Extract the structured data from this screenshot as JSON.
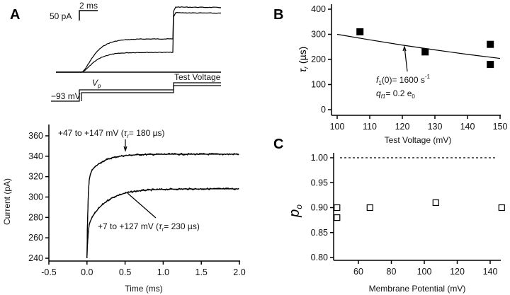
{
  "panels": {
    "a": "A",
    "b": "B",
    "c": "C"
  },
  "schematic": {
    "scale_time": "2 ms",
    "scale_current": "50 pA",
    "holding": "−93 mV",
    "prepulse_v": "V",
    "prepulse_sub": "p",
    "test_voltage": "Test Voltage"
  },
  "chart_data": [
    {
      "id": "A-bottom",
      "type": "line",
      "xlabel": "Time (ms)",
      "ylabel": "Current (pA)",
      "xlim": [
        -0.5,
        2.0
      ],
      "ylim": [
        240,
        370
      ],
      "xticks": [
        "-0.5",
        "0.0",
        "0.5",
        "1.0",
        "1.5",
        "2.0"
      ],
      "yticks": [
        "240",
        "260",
        "280",
        "300",
        "320",
        "340",
        "360"
      ],
      "series": [
        {
          "name": "+47 to +147 mV",
          "plateau": 342,
          "start": 240,
          "tau_us": 180,
          "label_pre": "+47 to +147 mV (",
          "label_tau": "τ",
          "label_sub": "r",
          "label_post": "= 180 µs)"
        },
        {
          "name": "+7 to +127 mV",
          "plateau": 308,
          "start": 240,
          "tau_us": 230,
          "label_pre": "+7 to +127 mV (",
          "label_tau": "τ",
          "label_sub": "r",
          "label_post": "= 230 µs)"
        }
      ]
    },
    {
      "id": "B",
      "type": "scatter",
      "xlabel": "Test Voltage (mV)",
      "ylabel_sym": "τ",
      "ylabel_sub": "r",
      "ylabel_unit": " (µs)",
      "xlim": [
        98,
        150
      ],
      "ylim": [
        -10,
        410
      ],
      "xticks": [
        "100",
        "110",
        "120",
        "130",
        "140",
        "150"
      ],
      "yticks": [
        "0",
        "100",
        "200",
        "300",
        "400"
      ],
      "points": [
        [
          107,
          310
        ],
        [
          127,
          230
        ],
        [
          147,
          260
        ],
        [
          147,
          180
        ]
      ],
      "fit": {
        "x": [
          100,
          110,
          120,
          130,
          140,
          150
        ],
        "y": [
          300,
          278,
          257,
          238,
          220,
          204
        ]
      },
      "annotation": {
        "f_sym": "f",
        "f_sub": "1",
        "f_text": "(0)= 1600 s",
        "f_sup": "-1",
        "q_sym": "q",
        "q_sub": "f1",
        "q_text": "= 0.2 e",
        "q_sub2": "0"
      }
    },
    {
      "id": "C",
      "type": "scatter",
      "xlabel": "Membrane Potential (mV)",
      "ylabel_sym": "p",
      "ylabel_sub": "o",
      "xlim": [
        45,
        149
      ],
      "ylim": [
        0.795,
        1.005
      ],
      "xticks": [
        "60",
        "80",
        "100",
        "120",
        "140"
      ],
      "yticks": [
        "0.80",
        "0.85",
        "0.90",
        "0.95",
        "1.00"
      ],
      "points": [
        [
          47,
          0.9
        ],
        [
          47,
          0.88
        ],
        [
          67,
          0.9
        ],
        [
          107,
          0.91
        ],
        [
          147,
          0.9
        ]
      ],
      "reference_line": 1.0
    }
  ]
}
